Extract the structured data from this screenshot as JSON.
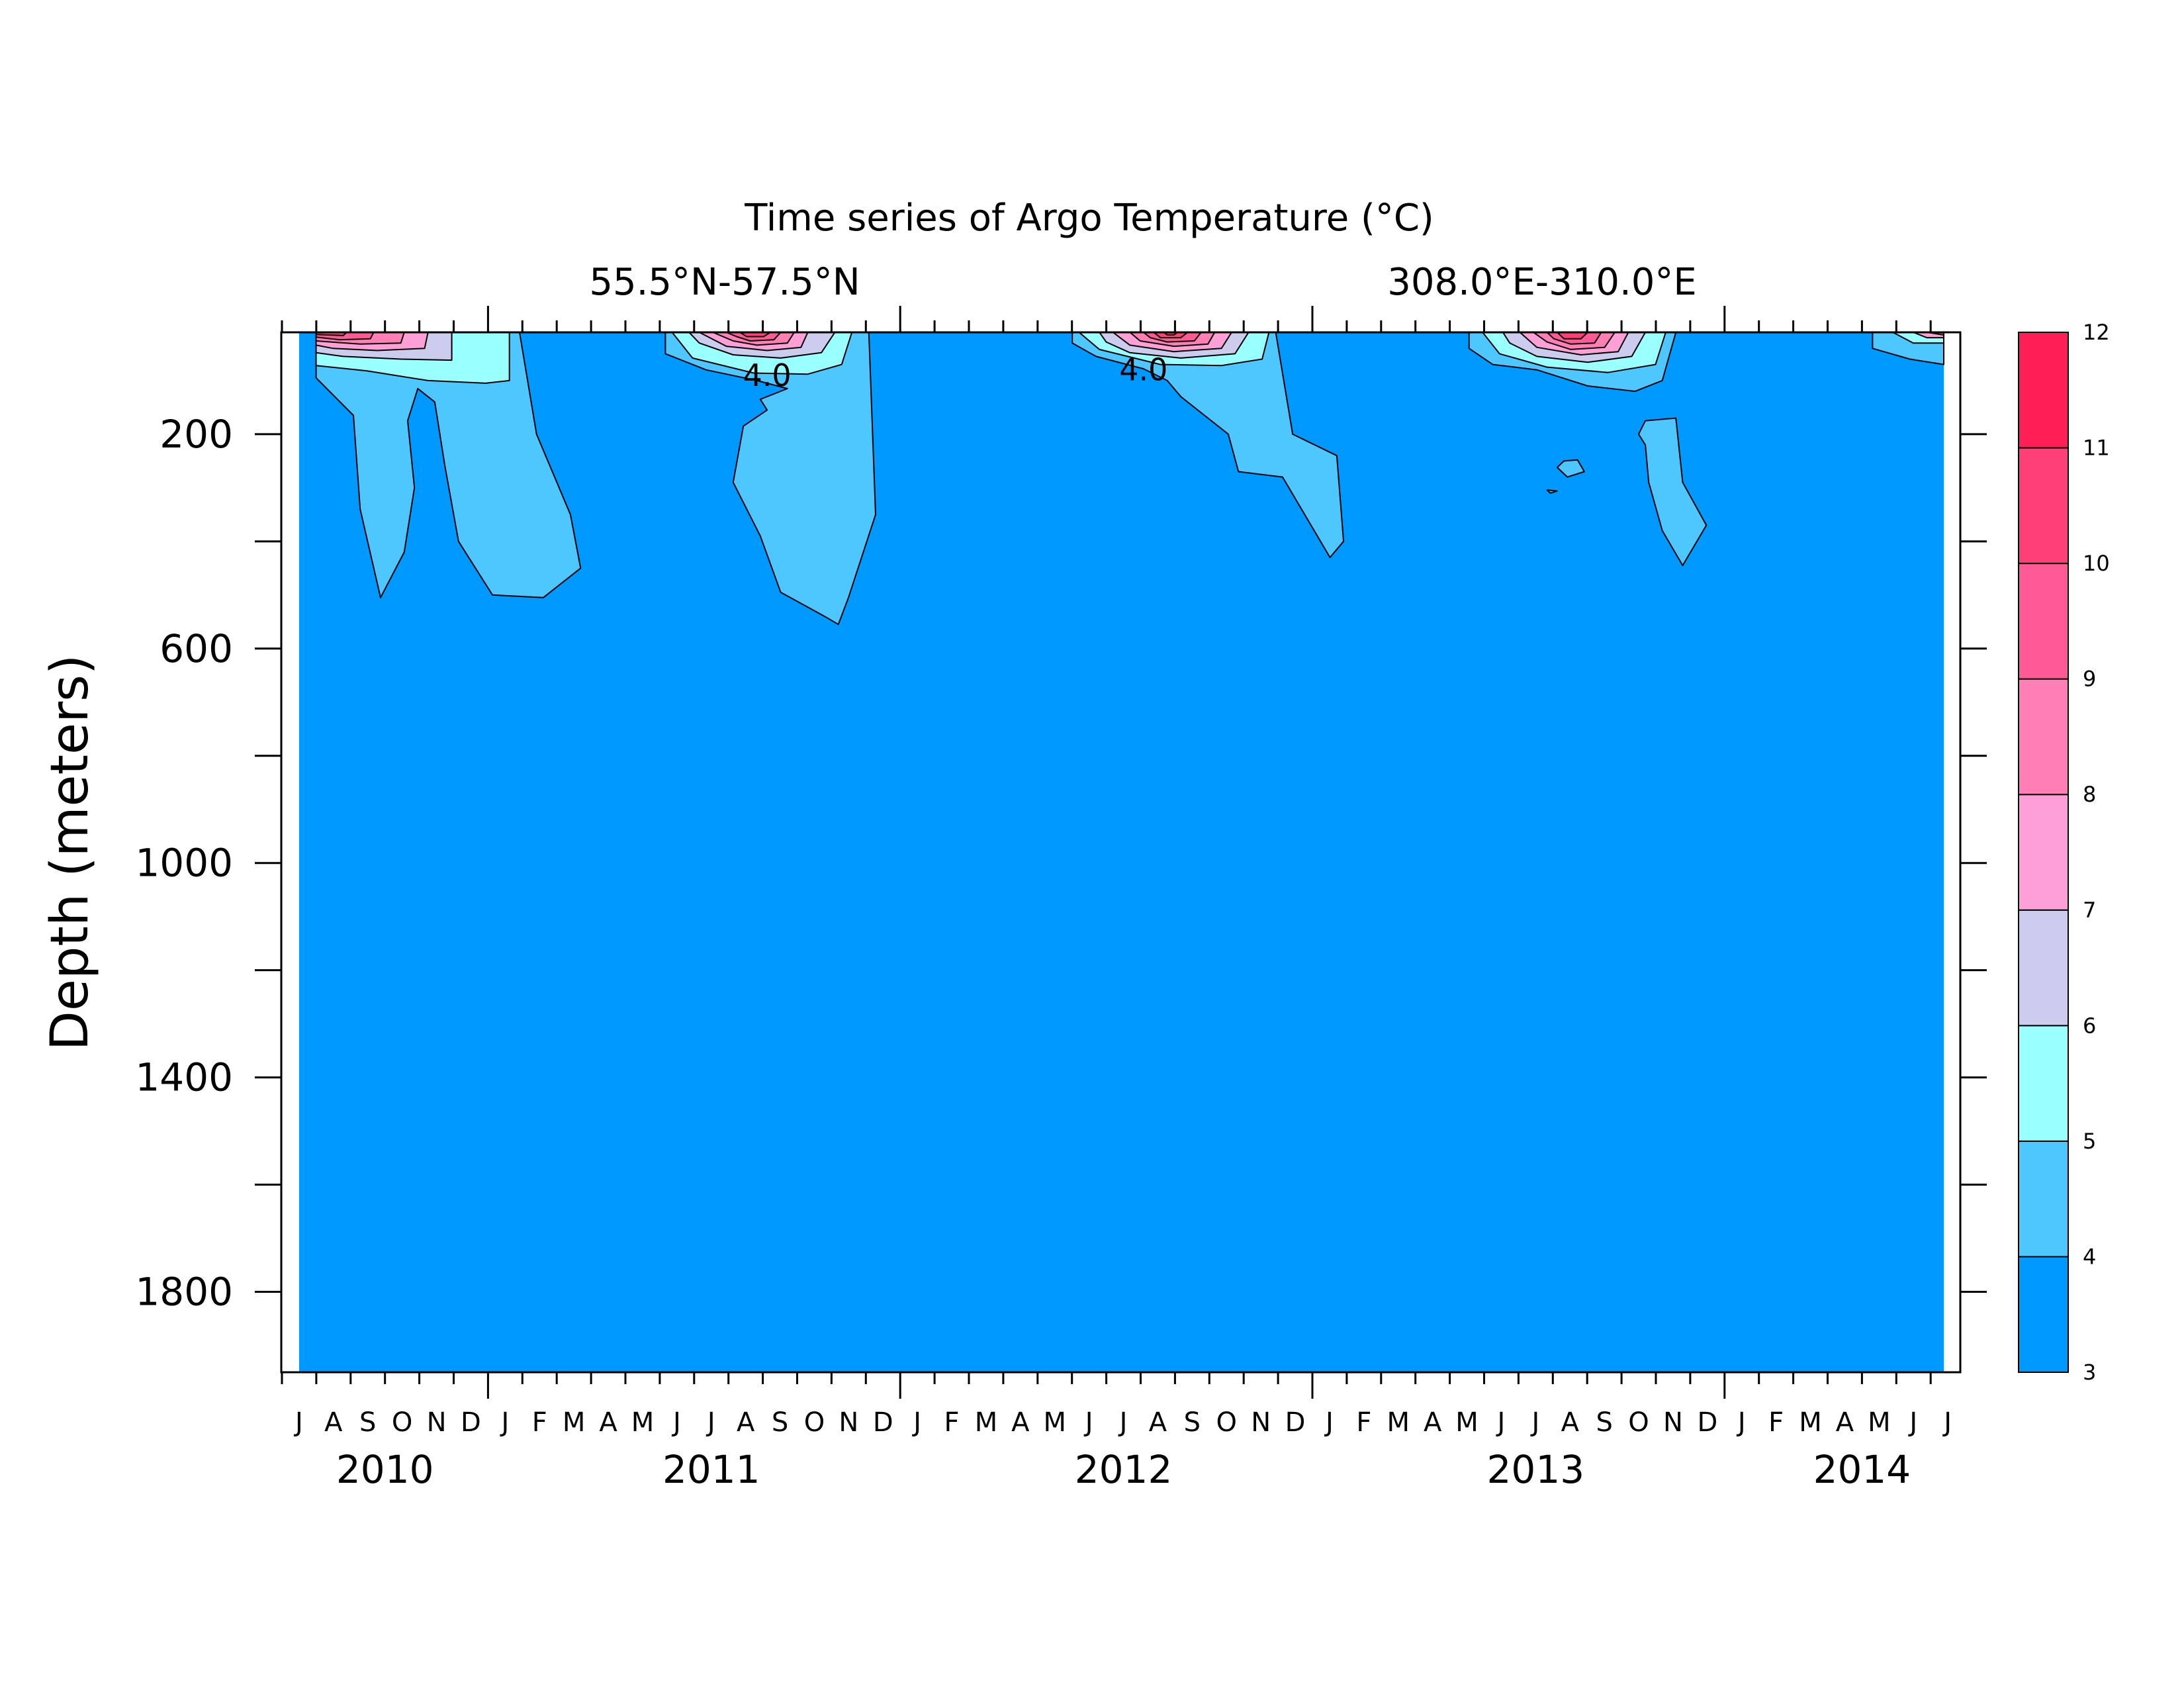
{
  "chart_data": {
    "type": "heatmap",
    "title": "Time series of Argo Temperature (°C)",
    "subtitle_lat": "55.5°N-57.5°N",
    "subtitle_lon": "308.0°E-310.0°E",
    "ylabel": "Depth (meters)",
    "xlabel": "",
    "ylim": [
      1950,
      10
    ],
    "y_ticks": [
      200,
      600,
      1000,
      1400,
      1800
    ],
    "x_range": [
      "2010-06",
      "2014-06"
    ],
    "month_labels": [
      "J",
      "A",
      "S",
      "O",
      "N",
      "D",
      "J",
      "F",
      "M",
      "A",
      "M",
      "J",
      "J",
      "A",
      "S",
      "O",
      "N",
      "D",
      "J",
      "F",
      "M",
      "A",
      "M",
      "J",
      "J",
      "A",
      "S",
      "O",
      "N",
      "D",
      "J",
      "F",
      "M",
      "A",
      "M",
      "J",
      "J",
      "A",
      "S",
      "O",
      "N",
      "D",
      "J",
      "F",
      "M",
      "A",
      "M",
      "J",
      "J"
    ],
    "year_labels": [
      {
        "label": "2010",
        "center_month": 2.5
      },
      {
        "label": "2011",
        "center_month": 12
      },
      {
        "label": "2012",
        "center_month": 24
      },
      {
        "label": "2013",
        "center_month": 36
      },
      {
        "label": "2014",
        "center_month": 45.5
      }
    ],
    "colorbar": {
      "levels": [
        3,
        4,
        5,
        6,
        7,
        8,
        9,
        10,
        11,
        12
      ],
      "colors": [
        "#0099ff",
        "#4ec6ff",
        "#99ffff",
        "#ccccee",
        "#ff9fd8",
        "#ff7eb6",
        "#ff5a96",
        "#ff3f78",
        "#ff1e56"
      ]
    },
    "background_color": "#0099ff",
    "contour_labels": [
      {
        "text": "4.0",
        "month": 13.8,
        "depth": 90
      },
      {
        "text": "4.0",
        "month": 24.9,
        "depth": 80
      }
    ],
    "regions": [
      {
        "level": 4,
        "points": [
          [
            0.5,
            10
          ],
          [
            6.5,
            10
          ],
          [
            7.0,
            200
          ],
          [
            8.0,
            350
          ],
          [
            8.3,
            450
          ],
          [
            7.2,
            505
          ],
          [
            5.7,
            500
          ],
          [
            4.7,
            400
          ],
          [
            4.3,
            260
          ],
          [
            4.0,
            140
          ],
          [
            3.5,
            115
          ],
          [
            3.2,
            175
          ],
          [
            3.4,
            300
          ],
          [
            3.1,
            420
          ],
          [
            2.4,
            505
          ],
          [
            1.8,
            340
          ],
          [
            1.6,
            165
          ],
          [
            0.5,
            95
          ]
        ]
      },
      {
        "level": 5,
        "points": [
          [
            0.5,
            10
          ],
          [
            6.2,
            10
          ],
          [
            6.2,
            100
          ],
          [
            5.5,
            105
          ],
          [
            3.8,
            100
          ],
          [
            2.0,
            82
          ],
          [
            0.5,
            72
          ]
        ]
      },
      {
        "level": 6,
        "points": [
          [
            0.5,
            10
          ],
          [
            4.5,
            10
          ],
          [
            4.5,
            62
          ],
          [
            3.0,
            60
          ],
          [
            1.3,
            55
          ],
          [
            0.5,
            48
          ]
        ]
      },
      {
        "level": 7,
        "points": [
          [
            0.5,
            10
          ],
          [
            3.8,
            10
          ],
          [
            3.7,
            40
          ],
          [
            2.3,
            44
          ],
          [
            1.0,
            40
          ],
          [
            0.5,
            34
          ]
        ]
      },
      {
        "level": 8,
        "points": [
          [
            0.5,
            10
          ],
          [
            3.1,
            10
          ],
          [
            3.0,
            30
          ],
          [
            1.8,
            32
          ],
          [
            0.5,
            26
          ]
        ]
      },
      {
        "level": 9,
        "points": [
          [
            0.5,
            10
          ],
          [
            2.2,
            10
          ],
          [
            2.1,
            22
          ],
          [
            1.2,
            24
          ],
          [
            0.5,
            19
          ]
        ]
      },
      {
        "level": 10,
        "points": [
          [
            0.5,
            10
          ],
          [
            1.4,
            10
          ],
          [
            1.3,
            16
          ],
          [
            0.5,
            14
          ]
        ]
      },
      {
        "level": 4,
        "points": [
          [
            10.8,
            10
          ],
          [
            16.8,
            10
          ],
          [
            17.0,
            350
          ],
          [
            16.2,
            505
          ],
          [
            15.9,
            555
          ],
          [
            15.5,
            540
          ],
          [
            14.2,
            495
          ],
          [
            13.6,
            390
          ],
          [
            12.8,
            290
          ],
          [
            13.1,
            185
          ],
          [
            13.8,
            155
          ],
          [
            13.6,
            135
          ],
          [
            14.4,
            115
          ],
          [
            13.5,
            100
          ],
          [
            12.0,
            80
          ],
          [
            10.8,
            50
          ]
        ]
      },
      {
        "level": 5,
        "points": [
          [
            11.0,
            10
          ],
          [
            16.3,
            10
          ],
          [
            16.0,
            70
          ],
          [
            15.0,
            88
          ],
          [
            13.4,
            86
          ],
          [
            11.6,
            58
          ]
        ]
      },
      {
        "level": 6,
        "points": [
          [
            11.5,
            10
          ],
          [
            15.8,
            10
          ],
          [
            15.4,
            48
          ],
          [
            14.2,
            58
          ],
          [
            12.8,
            52
          ],
          [
            11.8,
            30
          ]
        ]
      },
      {
        "level": 7,
        "points": [
          [
            11.8,
            10
          ],
          [
            15.0,
            10
          ],
          [
            14.8,
            38
          ],
          [
            13.8,
            44
          ],
          [
            12.6,
            36
          ]
        ]
      },
      {
        "level": 8,
        "points": [
          [
            12.2,
            10
          ],
          [
            14.6,
            10
          ],
          [
            14.4,
            30
          ],
          [
            13.5,
            34
          ],
          [
            12.8,
            26
          ]
        ]
      },
      {
        "level": 9,
        "points": [
          [
            12.6,
            10
          ],
          [
            14.2,
            10
          ],
          [
            14.0,
            24
          ],
          [
            13.3,
            26
          ],
          [
            12.9,
            18
          ]
        ]
      },
      {
        "level": 10,
        "points": [
          [
            13.0,
            10
          ],
          [
            13.9,
            10
          ],
          [
            13.7,
            18
          ],
          [
            13.2,
            18
          ]
        ]
      },
      {
        "level": 4,
        "points": [
          [
            22.8,
            10
          ],
          [
            28.8,
            10
          ],
          [
            29.3,
            200
          ],
          [
            30.6,
            240
          ],
          [
            30.8,
            400
          ],
          [
            30.4,
            430
          ],
          [
            29.0,
            280
          ],
          [
            27.7,
            270
          ],
          [
            27.4,
            200
          ],
          [
            26.8,
            170
          ],
          [
            26.0,
            130
          ],
          [
            25.6,
            100
          ],
          [
            24.9,
            78
          ],
          [
            23.5,
            55
          ],
          [
            22.8,
            30
          ]
        ]
      },
      {
        "level": 5,
        "points": [
          [
            23.0,
            10
          ],
          [
            28.6,
            10
          ],
          [
            28.4,
            60
          ],
          [
            27.2,
            72
          ],
          [
            25.4,
            70
          ],
          [
            23.6,
            42
          ]
        ]
      },
      {
        "level": 6,
        "points": [
          [
            23.6,
            10
          ],
          [
            28.0,
            10
          ],
          [
            27.6,
            50
          ],
          [
            26.0,
            58
          ],
          [
            24.5,
            48
          ],
          [
            23.8,
            28
          ]
        ]
      },
      {
        "level": 7,
        "points": [
          [
            24.0,
            10
          ],
          [
            27.5,
            10
          ],
          [
            27.2,
            40
          ],
          [
            25.8,
            46
          ],
          [
            24.5,
            34
          ]
        ]
      },
      {
        "level": 8,
        "points": [
          [
            24.5,
            10
          ],
          [
            27.0,
            10
          ],
          [
            26.8,
            32
          ],
          [
            25.8,
            36
          ],
          [
            24.8,
            26
          ]
        ]
      },
      {
        "level": 9,
        "points": [
          [
            24.9,
            10
          ],
          [
            26.6,
            10
          ],
          [
            26.4,
            26
          ],
          [
            25.6,
            28
          ],
          [
            25.1,
            20
          ]
        ]
      },
      {
        "level": 10,
        "points": [
          [
            25.2,
            10
          ],
          [
            26.2,
            10
          ],
          [
            26.0,
            20
          ],
          [
            25.4,
            20
          ]
        ]
      },
      {
        "level": 11,
        "points": [
          [
            25.5,
            10
          ],
          [
            25.9,
            10
          ],
          [
            25.8,
            15
          ],
          [
            25.6,
            15
          ]
        ]
      },
      {
        "level": 4,
        "points": [
          [
            34.5,
            10
          ],
          [
            40.6,
            10
          ],
          [
            40.2,
            100
          ],
          [
            39.4,
            120
          ],
          [
            38.0,
            110
          ],
          [
            36.5,
            80
          ],
          [
            35.2,
            70
          ],
          [
            34.5,
            40
          ]
        ]
      },
      {
        "level": 4,
        "points": [
          [
            39.7,
            175
          ],
          [
            40.6,
            170
          ],
          [
            40.8,
            290
          ],
          [
            41.5,
            370
          ],
          [
            40.8,
            445
          ],
          [
            40.2,
            380
          ],
          [
            39.8,
            290
          ],
          [
            39.7,
            220
          ],
          [
            39.5,
            200
          ]
        ]
      },
      {
        "level": 4,
        "points": [
          [
            37.3,
            250
          ],
          [
            37.7,
            248
          ],
          [
            37.9,
            270
          ],
          [
            37.4,
            280
          ],
          [
            37.1,
            262
          ]
        ]
      },
      {
        "level": 4,
        "points": [
          [
            36.8,
            304
          ],
          [
            37.1,
            306
          ],
          [
            36.9,
            310
          ]
        ]
      },
      {
        "level": 5,
        "points": [
          [
            34.9,
            10
          ],
          [
            40.3,
            10
          ],
          [
            40.0,
            70
          ],
          [
            38.6,
            85
          ],
          [
            36.8,
            75
          ],
          [
            35.4,
            50
          ]
        ]
      },
      {
        "level": 6,
        "points": [
          [
            35.5,
            10
          ],
          [
            39.7,
            10
          ],
          [
            39.3,
            55
          ],
          [
            38.0,
            66
          ],
          [
            36.5,
            55
          ],
          [
            35.7,
            30
          ]
        ]
      },
      {
        "level": 7,
        "points": [
          [
            36.0,
            10
          ],
          [
            39.2,
            10
          ],
          [
            38.9,
            46
          ],
          [
            37.8,
            52
          ],
          [
            36.5,
            38
          ]
        ]
      },
      {
        "level": 8,
        "points": [
          [
            36.4,
            10
          ],
          [
            38.8,
            10
          ],
          [
            38.5,
            38
          ],
          [
            37.5,
            42
          ],
          [
            36.8,
            28
          ]
        ]
      },
      {
        "level": 9,
        "points": [
          [
            36.8,
            10
          ],
          [
            38.4,
            10
          ],
          [
            38.2,
            30
          ],
          [
            37.5,
            32
          ],
          [
            37.0,
            22
          ]
        ]
      },
      {
        "level": 10,
        "points": [
          [
            37.1,
            10
          ],
          [
            38.0,
            10
          ],
          [
            37.8,
            22
          ],
          [
            37.3,
            22
          ]
        ]
      },
      {
        "level": 4,
        "points": [
          [
            46.4,
            10
          ],
          [
            48.5,
            10
          ],
          [
            48.5,
            70
          ],
          [
            47.5,
            60
          ],
          [
            46.4,
            40
          ]
        ]
      },
      {
        "level": 5,
        "points": [
          [
            47.0,
            10
          ],
          [
            48.5,
            10
          ],
          [
            48.5,
            30
          ],
          [
            47.6,
            30
          ]
        ]
      },
      {
        "level": 7,
        "points": [
          [
            47.6,
            10
          ],
          [
            48.5,
            10
          ],
          [
            48.5,
            20
          ],
          [
            48.0,
            20
          ]
        ]
      },
      {
        "level": 9,
        "points": [
          [
            48.0,
            10
          ],
          [
            48.5,
            10
          ],
          [
            48.5,
            15
          ]
        ]
      }
    ]
  }
}
